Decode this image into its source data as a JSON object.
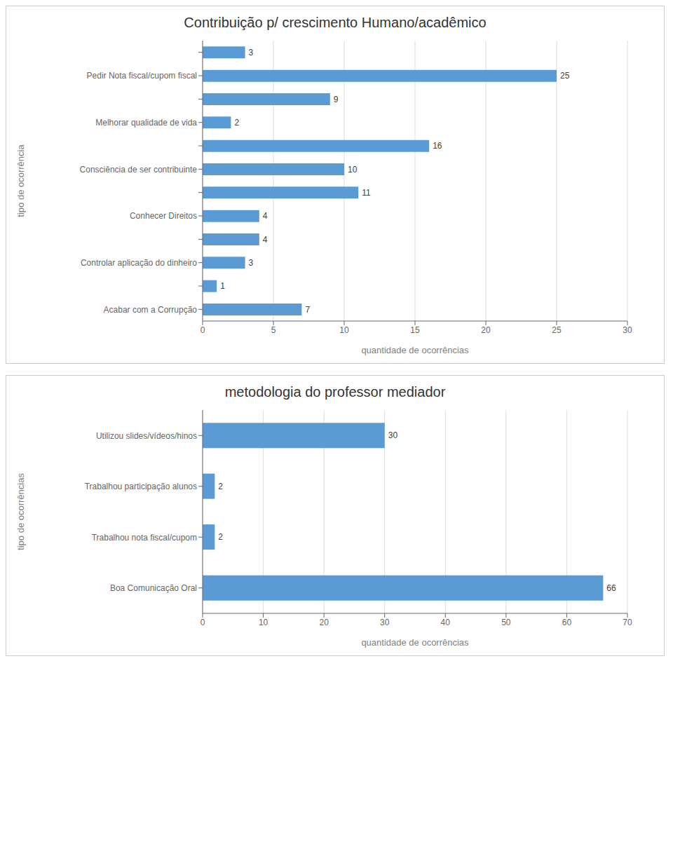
{
  "chart_data": [
    {
      "type": "bar",
      "orientation": "horizontal",
      "title": "Contribuição p/ crescimento Humano/acadêmico",
      "ylabel": "tipo de ocorrência",
      "xlabel": "quantidade de ocorrências",
      "categories": [
        "Acabar com a Corrupção",
        null,
        "Controlar aplicação do dinheiro",
        null,
        "Conhecer Direitos",
        null,
        "Consciência de ser contribuinte",
        null,
        "Melhorar qualidade de vida",
        null,
        "Pedir Nota fiscal/cupom fiscal",
        null
      ],
      "values": [
        7,
        1,
        3,
        4,
        4,
        11,
        10,
        16,
        2,
        9,
        25,
        3
      ],
      "xlim": [
        0,
        30
      ],
      "xticks": [
        0,
        5,
        10,
        15,
        20,
        25,
        30
      ],
      "color": "#5B9BD5",
      "grid": true,
      "data_labels": true
    },
    {
      "type": "bar",
      "orientation": "horizontal",
      "title": "metodologia do professor mediador",
      "ylabel": "tipo de ocorrências",
      "xlabel": "quantidade de ocorrências",
      "categories": [
        "Boa Comunicação Oral",
        "Trabalhou  nota fiscal/cupom",
        "Trabalhou  participação alunos",
        "Utilizou slides/vídeos/hinos"
      ],
      "values": [
        66,
        2,
        2,
        30
      ],
      "xlim": [
        0,
        70
      ],
      "xticks": [
        0,
        10,
        20,
        30,
        40,
        50,
        60,
        70
      ],
      "color": "#5B9BD5",
      "grid": true,
      "data_labels": true
    }
  ]
}
